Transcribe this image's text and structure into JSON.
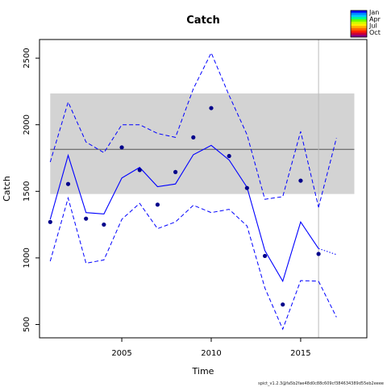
{
  "chart_data": {
    "type": "line",
    "title": "Catch",
    "xlabel": "Time",
    "ylabel": "Catch",
    "xlim": [
      2000.4,
      2018.7
    ],
    "ylim": [
      400,
      2640
    ],
    "x_ticks": [
      2005,
      2010,
      2015
    ],
    "y_ticks": [
      500,
      1000,
      1500,
      2000,
      2500
    ],
    "grid": false,
    "observed": {
      "x": [
        2001,
        2002,
        2003,
        2004,
        2005,
        2006,
        2007,
        2008,
        2009,
        2010,
        2011,
        2012,
        2013,
        2014,
        2015,
        2016
      ],
      "y": [
        1270,
        1555,
        1295,
        1250,
        1830,
        1660,
        1400,
        1645,
        1905,
        2125,
        1765,
        1525,
        1015,
        650,
        1580,
        1030
      ],
      "color": "#00008b"
    },
    "fitted": {
      "x": [
        2001,
        2002,
        2003,
        2004,
        2005,
        2006,
        2007,
        2008,
        2009,
        2010,
        2011,
        2012,
        2013,
        2014,
        2015,
        2016
      ],
      "y": [
        1290,
        1770,
        1340,
        1330,
        1600,
        1680,
        1535,
        1555,
        1775,
        1845,
        1735,
        1530,
        1055,
        825,
        1270,
        1070
      ],
      "color": "#0000ff"
    },
    "ci_upper": {
      "x": [
        2001,
        2002,
        2003,
        2004,
        2005,
        2006,
        2007,
        2008,
        2009,
        2010,
        2011,
        2012,
        2013,
        2014,
        2015,
        2016
      ],
      "y": [
        1720,
        2170,
        1870,
        1790,
        2000,
        2000,
        1935,
        1905,
        2270,
        2540,
        2220,
        1925,
        1440,
        1460,
        1950,
        1380
      ]
    },
    "ci_lower": {
      "x": [
        2001,
        2002,
        2003,
        2004,
        2005,
        2006,
        2007,
        2008,
        2009,
        2010,
        2011,
        2012,
        2013,
        2014,
        2015,
        2016
      ],
      "y": [
        975,
        1450,
        960,
        985,
        1290,
        1410,
        1220,
        1270,
        1395,
        1340,
        1365,
        1240,
        775,
        465,
        830,
        825
      ]
    },
    "forecast": {
      "x": [
        2016,
        2017
      ],
      "y": [
        1070,
        1025
      ],
      "upper": [
        1380,
        1900
      ],
      "lower": [
        825,
        555
      ]
    },
    "mean_band": {
      "x_range": [
        2001,
        2018
      ],
      "lower": 1480,
      "upper": 2235,
      "mean": 1815,
      "band_color": "#d3d3d3",
      "line_color": "#555555"
    },
    "vertical_line_x": 2016,
    "legend": {
      "position": "top-right",
      "entries": [
        "Jan",
        "Apr",
        "Jul",
        "Oct"
      ],
      "colors": [
        "#0000ff",
        "#0088ff",
        "#00ccff",
        "#00ff88",
        "#66ff00",
        "#ccff00",
        "#ffee00",
        "#ffaa00",
        "#ff6600",
        "#ff2200",
        "#cc0033",
        "#880088"
      ]
    },
    "footer": "spict_v1.2.3@fa5b2fae48d0c88c609cf384634389d55eb2eeee"
  }
}
